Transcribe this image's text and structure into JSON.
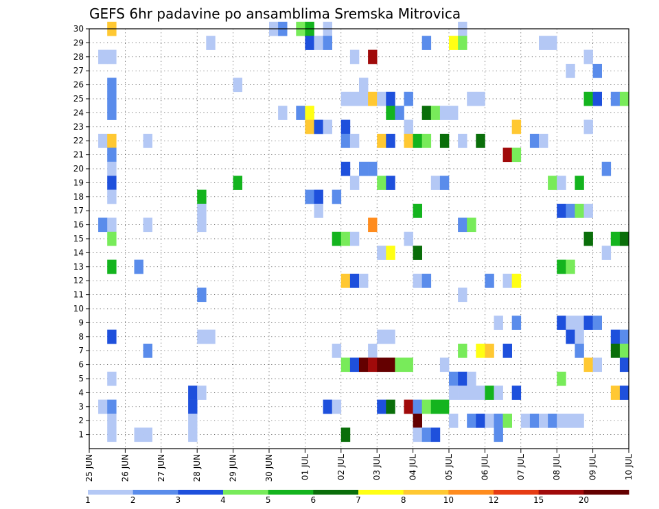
{
  "chart_data": {
    "type": "heatmap",
    "title": "GEFS 6hr padavine po ansamblima Sremska Mitrovica",
    "xlabel": "",
    "ylabel": "",
    "x_ticks": [
      "25 JUN",
      "26 JUN",
      "27 JUN",
      "28 JUN",
      "29 JUN",
      "30 JUN",
      "01 JUL",
      "02 JUL",
      "03 JUL",
      "04 JUL",
      "05 JUL",
      "06 JUL",
      "07 JUL",
      "08 JUL",
      "09 JUL",
      "10 JUL"
    ],
    "y_ticks": [
      "1",
      "2",
      "3",
      "4",
      "5",
      "6",
      "7",
      "8",
      "9",
      "10",
      "11",
      "12",
      "13",
      "14",
      "15",
      "16",
      "17",
      "18",
      "19",
      "20",
      "21",
      "22",
      "23",
      "24",
      "25",
      "26",
      "27",
      "28",
      "29",
      "30"
    ],
    "time_steps_per_day": 4,
    "time_steps_total": 60,
    "members": 30,
    "grid": true,
    "colorbar": {
      "labels": [
        "1",
        "2",
        "3",
        "4",
        "5",
        "6",
        "7",
        "8",
        "10",
        "12",
        "15",
        "20"
      ],
      "colors": [
        "#b4c8f5",
        "#5a8ceb",
        "#1e50dc",
        "#78eb5a",
        "#14b41e",
        "#0a6e0a",
        "#ffff14",
        "#ffc832",
        "#ff8c1e",
        "#e63c14",
        "#a00a0a",
        "#640000"
      ]
    },
    "cells": [
      {
        "t": 2,
        "m": 30,
        "c": 8
      },
      {
        "t": 20,
        "m": 30,
        "c": 1
      },
      {
        "t": 21,
        "m": 30,
        "c": 2
      },
      {
        "t": 23,
        "m": 30,
        "c": 4
      },
      {
        "t": 24,
        "m": 30,
        "c": 5
      },
      {
        "t": 26,
        "m": 30,
        "c": 1
      },
      {
        "t": 41,
        "m": 30,
        "c": 1
      },
      {
        "t": 13,
        "m": 29,
        "c": 1
      },
      {
        "t": 24,
        "m": 29,
        "c": 3
      },
      {
        "t": 25,
        "m": 29,
        "c": 1
      },
      {
        "t": 26,
        "m": 29,
        "c": 2
      },
      {
        "t": 37,
        "m": 29,
        "c": 2
      },
      {
        "t": 40,
        "m": 29,
        "c": 7
      },
      {
        "t": 41,
        "m": 29,
        "c": 4
      },
      {
        "t": 50,
        "m": 29,
        "c": 1
      },
      {
        "t": 51,
        "m": 29,
        "c": 1
      },
      {
        "t": 1,
        "m": 28,
        "c": 1
      },
      {
        "t": 2,
        "m": 28,
        "c": 1
      },
      {
        "t": 29,
        "m": 28,
        "c": 1
      },
      {
        "t": 31,
        "m": 28,
        "c": 11
      },
      {
        "t": 55,
        "m": 28,
        "c": 1
      },
      {
        "t": 53,
        "m": 27,
        "c": 1
      },
      {
        "t": 56,
        "m": 27,
        "c": 2
      },
      {
        "t": 2,
        "m": 26,
        "c": 2
      },
      {
        "t": 16,
        "m": 26,
        "c": 1
      },
      {
        "t": 30,
        "m": 26,
        "c": 1
      },
      {
        "t": 2,
        "m": 25,
        "c": 2
      },
      {
        "t": 28,
        "m": 25,
        "c": 1
      },
      {
        "t": 29,
        "m": 25,
        "c": 1
      },
      {
        "t": 30,
        "m": 25,
        "c": 1
      },
      {
        "t": 31,
        "m": 25,
        "c": 8
      },
      {
        "t": 32,
        "m": 25,
        "c": 1
      },
      {
        "t": 33,
        "m": 25,
        "c": 3
      },
      {
        "t": 35,
        "m": 25,
        "c": 2
      },
      {
        "t": 42,
        "m": 25,
        "c": 1
      },
      {
        "t": 43,
        "m": 25,
        "c": 1
      },
      {
        "t": 55,
        "m": 25,
        "c": 5
      },
      {
        "t": 56,
        "m": 25,
        "c": 3
      },
      {
        "t": 58,
        "m": 25,
        "c": 2
      },
      {
        "t": 59,
        "m": 25,
        "c": 4
      },
      {
        "t": 2,
        "m": 24,
        "c": 2
      },
      {
        "t": 21,
        "m": 24,
        "c": 1
      },
      {
        "t": 23,
        "m": 24,
        "c": 2
      },
      {
        "t": 24,
        "m": 24,
        "c": 7
      },
      {
        "t": 33,
        "m": 24,
        "c": 5
      },
      {
        "t": 34,
        "m": 24,
        "c": 2
      },
      {
        "t": 37,
        "m": 24,
        "c": 6
      },
      {
        "t": 38,
        "m": 24,
        "c": 4
      },
      {
        "t": 39,
        "m": 24,
        "c": 1
      },
      {
        "t": 40,
        "m": 24,
        "c": 1
      },
      {
        "t": 24,
        "m": 23,
        "c": 8
      },
      {
        "t": 25,
        "m": 23,
        "c": 3
      },
      {
        "t": 26,
        "m": 23,
        "c": 1
      },
      {
        "t": 28,
        "m": 23,
        "c": 3
      },
      {
        "t": 35,
        "m": 23,
        "c": 1
      },
      {
        "t": 47,
        "m": 23,
        "c": 8
      },
      {
        "t": 55,
        "m": 23,
        "c": 1
      },
      {
        "t": 1,
        "m": 22,
        "c": 1
      },
      {
        "t": 2,
        "m": 22,
        "c": 8
      },
      {
        "t": 6,
        "m": 22,
        "c": 1
      },
      {
        "t": 28,
        "m": 22,
        "c": 2
      },
      {
        "t": 29,
        "m": 22,
        "c": 1
      },
      {
        "t": 32,
        "m": 22,
        "c": 8
      },
      {
        "t": 33,
        "m": 22,
        "c": 3
      },
      {
        "t": 35,
        "m": 22,
        "c": 8
      },
      {
        "t": 36,
        "m": 22,
        "c": 5
      },
      {
        "t": 37,
        "m": 22,
        "c": 4
      },
      {
        "t": 39,
        "m": 22,
        "c": 6
      },
      {
        "t": 41,
        "m": 22,
        "c": 1
      },
      {
        "t": 43,
        "m": 22,
        "c": 6
      },
      {
        "t": 49,
        "m": 22,
        "c": 2
      },
      {
        "t": 50,
        "m": 22,
        "c": 1
      },
      {
        "t": 2,
        "m": 21,
        "c": 2
      },
      {
        "t": 46,
        "m": 21,
        "c": 11
      },
      {
        "t": 47,
        "m": 21,
        "c": 4
      },
      {
        "t": 2,
        "m": 20,
        "c": 1
      },
      {
        "t": 28,
        "m": 20,
        "c": 3
      },
      {
        "t": 30,
        "m": 20,
        "c": 2
      },
      {
        "t": 31,
        "m": 20,
        "c": 2
      },
      {
        "t": 57,
        "m": 20,
        "c": 2
      },
      {
        "t": 2,
        "m": 19,
        "c": 3
      },
      {
        "t": 16,
        "m": 19,
        "c": 5
      },
      {
        "t": 29,
        "m": 19,
        "c": 1
      },
      {
        "t": 32,
        "m": 19,
        "c": 4
      },
      {
        "t": 33,
        "m": 19,
        "c": 3
      },
      {
        "t": 38,
        "m": 19,
        "c": 1
      },
      {
        "t": 39,
        "m": 19,
        "c": 2
      },
      {
        "t": 51,
        "m": 19,
        "c": 4
      },
      {
        "t": 52,
        "m": 19,
        "c": 1
      },
      {
        "t": 54,
        "m": 19,
        "c": 5
      },
      {
        "t": 2,
        "m": 18,
        "c": 1
      },
      {
        "t": 12,
        "m": 18,
        "c": 5
      },
      {
        "t": 24,
        "m": 18,
        "c": 2
      },
      {
        "t": 25,
        "m": 18,
        "c": 3
      },
      {
        "t": 27,
        "m": 18,
        "c": 2
      },
      {
        "t": 12,
        "m": 17,
        "c": 1
      },
      {
        "t": 25,
        "m": 17,
        "c": 1
      },
      {
        "t": 36,
        "m": 17,
        "c": 5
      },
      {
        "t": 52,
        "m": 17,
        "c": 3
      },
      {
        "t": 53,
        "m": 17,
        "c": 2
      },
      {
        "t": 54,
        "m": 17,
        "c": 4
      },
      {
        "t": 55,
        "m": 17,
        "c": 1
      },
      {
        "t": 1,
        "m": 16,
        "c": 2
      },
      {
        "t": 2,
        "m": 16,
        "c": 1
      },
      {
        "t": 6,
        "m": 16,
        "c": 1
      },
      {
        "t": 12,
        "m": 16,
        "c": 1
      },
      {
        "t": 31,
        "m": 16,
        "c": 9
      },
      {
        "t": 41,
        "m": 16,
        "c": 2
      },
      {
        "t": 42,
        "m": 16,
        "c": 4
      },
      {
        "t": 2,
        "m": 15,
        "c": 4
      },
      {
        "t": 27,
        "m": 15,
        "c": 5
      },
      {
        "t": 28,
        "m": 15,
        "c": 4
      },
      {
        "t": 29,
        "m": 15,
        "c": 1
      },
      {
        "t": 35,
        "m": 15,
        "c": 1
      },
      {
        "t": 55,
        "m": 15,
        "c": 6
      },
      {
        "t": 58,
        "m": 15,
        "c": 5
      },
      {
        "t": 59,
        "m": 15,
        "c": 6
      },
      {
        "t": 32,
        "m": 14,
        "c": 1
      },
      {
        "t": 33,
        "m": 14,
        "c": 7
      },
      {
        "t": 36,
        "m": 14,
        "c": 6
      },
      {
        "t": 57,
        "m": 14,
        "c": 1
      },
      {
        "t": 2,
        "m": 13,
        "c": 5
      },
      {
        "t": 5,
        "m": 13,
        "c": 2
      },
      {
        "t": 52,
        "m": 13,
        "c": 5
      },
      {
        "t": 53,
        "m": 13,
        "c": 4
      },
      {
        "t": 28,
        "m": 12,
        "c": 8
      },
      {
        "t": 29,
        "m": 12,
        "c": 3
      },
      {
        "t": 30,
        "m": 12,
        "c": 1
      },
      {
        "t": 36,
        "m": 12,
        "c": 1
      },
      {
        "t": 37,
        "m": 12,
        "c": 2
      },
      {
        "t": 44,
        "m": 12,
        "c": 2
      },
      {
        "t": 46,
        "m": 12,
        "c": 1
      },
      {
        "t": 47,
        "m": 12,
        "c": 7
      },
      {
        "t": 12,
        "m": 11,
        "c": 2
      },
      {
        "t": 41,
        "m": 11,
        "c": 1
      },
      {
        "t": 45,
        "m": 9,
        "c": 1
      },
      {
        "t": 47,
        "m": 9,
        "c": 2
      },
      {
        "t": 52,
        "m": 9,
        "c": 3
      },
      {
        "t": 53,
        "m": 9,
        "c": 1
      },
      {
        "t": 54,
        "m": 9,
        "c": 1
      },
      {
        "t": 55,
        "m": 9,
        "c": 3
      },
      {
        "t": 56,
        "m": 9,
        "c": 2
      },
      {
        "t": 2,
        "m": 8,
        "c": 3
      },
      {
        "t": 12,
        "m": 8,
        "c": 1
      },
      {
        "t": 13,
        "m": 8,
        "c": 1
      },
      {
        "t": 32,
        "m": 8,
        "c": 1
      },
      {
        "t": 33,
        "m": 8,
        "c": 1
      },
      {
        "t": 53,
        "m": 8,
        "c": 3
      },
      {
        "t": 54,
        "m": 8,
        "c": 1
      },
      {
        "t": 58,
        "m": 8,
        "c": 3
      },
      {
        "t": 59,
        "m": 8,
        "c": 2
      },
      {
        "t": 6,
        "m": 7,
        "c": 2
      },
      {
        "t": 27,
        "m": 7,
        "c": 1
      },
      {
        "t": 31,
        "m": 7,
        "c": 1
      },
      {
        "t": 41,
        "m": 7,
        "c": 4
      },
      {
        "t": 43,
        "m": 7,
        "c": 7
      },
      {
        "t": 44,
        "m": 7,
        "c": 8
      },
      {
        "t": 46,
        "m": 7,
        "c": 3
      },
      {
        "t": 54,
        "m": 7,
        "c": 2
      },
      {
        "t": 58,
        "m": 7,
        "c": 6
      },
      {
        "t": 59,
        "m": 7,
        "c": 4
      },
      {
        "t": 28,
        "m": 6,
        "c": 4
      },
      {
        "t": 29,
        "m": 6,
        "c": 3
      },
      {
        "t": 30,
        "m": 6,
        "c": 12
      },
      {
        "t": 31,
        "m": 6,
        "c": 11
      },
      {
        "t": 32,
        "m": 6,
        "c": 12
      },
      {
        "t": 33,
        "m": 6,
        "c": 12
      },
      {
        "t": 34,
        "m": 6,
        "c": 4
      },
      {
        "t": 35,
        "m": 6,
        "c": 4
      },
      {
        "t": 39,
        "m": 6,
        "c": 1
      },
      {
        "t": 55,
        "m": 6,
        "c": 8
      },
      {
        "t": 56,
        "m": 6,
        "c": 1
      },
      {
        "t": 59,
        "m": 6,
        "c": 3
      },
      {
        "t": 2,
        "m": 5,
        "c": 1
      },
      {
        "t": 40,
        "m": 5,
        "c": 2
      },
      {
        "t": 41,
        "m": 5,
        "c": 3
      },
      {
        "t": 42,
        "m": 5,
        "c": 1
      },
      {
        "t": 52,
        "m": 5,
        "c": 4
      },
      {
        "t": 11,
        "m": 4,
        "c": 3
      },
      {
        "t": 12,
        "m": 4,
        "c": 1
      },
      {
        "t": 40,
        "m": 4,
        "c": 1
      },
      {
        "t": 41,
        "m": 4,
        "c": 1
      },
      {
        "t": 42,
        "m": 4,
        "c": 1
      },
      {
        "t": 43,
        "m": 4,
        "c": 1
      },
      {
        "t": 44,
        "m": 4,
        "c": 5
      },
      {
        "t": 45,
        "m": 4,
        "c": 1
      },
      {
        "t": 47,
        "m": 4,
        "c": 3
      },
      {
        "t": 58,
        "m": 4,
        "c": 8
      },
      {
        "t": 59,
        "m": 4,
        "c": 3
      },
      {
        "t": 1,
        "m": 3,
        "c": 1
      },
      {
        "t": 2,
        "m": 3,
        "c": 2
      },
      {
        "t": 11,
        "m": 3,
        "c": 3
      },
      {
        "t": 26,
        "m": 3,
        "c": 3
      },
      {
        "t": 27,
        "m": 3,
        "c": 1
      },
      {
        "t": 32,
        "m": 3,
        "c": 3
      },
      {
        "t": 33,
        "m": 3,
        "c": 6
      },
      {
        "t": 35,
        "m": 3,
        "c": 11
      },
      {
        "t": 36,
        "m": 3,
        "c": 2
      },
      {
        "t": 37,
        "m": 3,
        "c": 4
      },
      {
        "t": 38,
        "m": 3,
        "c": 5
      },
      {
        "t": 39,
        "m": 3,
        "c": 5
      },
      {
        "t": 2,
        "m": 2,
        "c": 1
      },
      {
        "t": 11,
        "m": 2,
        "c": 1
      },
      {
        "t": 36,
        "m": 2,
        "c": 12
      },
      {
        "t": 40,
        "m": 2,
        "c": 1
      },
      {
        "t": 42,
        "m": 2,
        "c": 2
      },
      {
        "t": 43,
        "m": 2,
        "c": 3
      },
      {
        "t": 44,
        "m": 2,
        "c": 1
      },
      {
        "t": 45,
        "m": 2,
        "c": 2
      },
      {
        "t": 46,
        "m": 2,
        "c": 4
      },
      {
        "t": 48,
        "m": 2,
        "c": 1
      },
      {
        "t": 49,
        "m": 2,
        "c": 2
      },
      {
        "t": 50,
        "m": 2,
        "c": 1
      },
      {
        "t": 51,
        "m": 2,
        "c": 2
      },
      {
        "t": 52,
        "m": 2,
        "c": 1
      },
      {
        "t": 53,
        "m": 2,
        "c": 1
      },
      {
        "t": 54,
        "m": 2,
        "c": 1
      },
      {
        "t": 2,
        "m": 1,
        "c": 1
      },
      {
        "t": 5,
        "m": 1,
        "c": 1
      },
      {
        "t": 6,
        "m": 1,
        "c": 1
      },
      {
        "t": 11,
        "m": 1,
        "c": 1
      },
      {
        "t": 28,
        "m": 1,
        "c": 6
      },
      {
        "t": 36,
        "m": 1,
        "c": 1
      },
      {
        "t": 37,
        "m": 1,
        "c": 2
      },
      {
        "t": 38,
        "m": 1,
        "c": 3
      },
      {
        "t": 45,
        "m": 1,
        "c": 2
      }
    ]
  }
}
